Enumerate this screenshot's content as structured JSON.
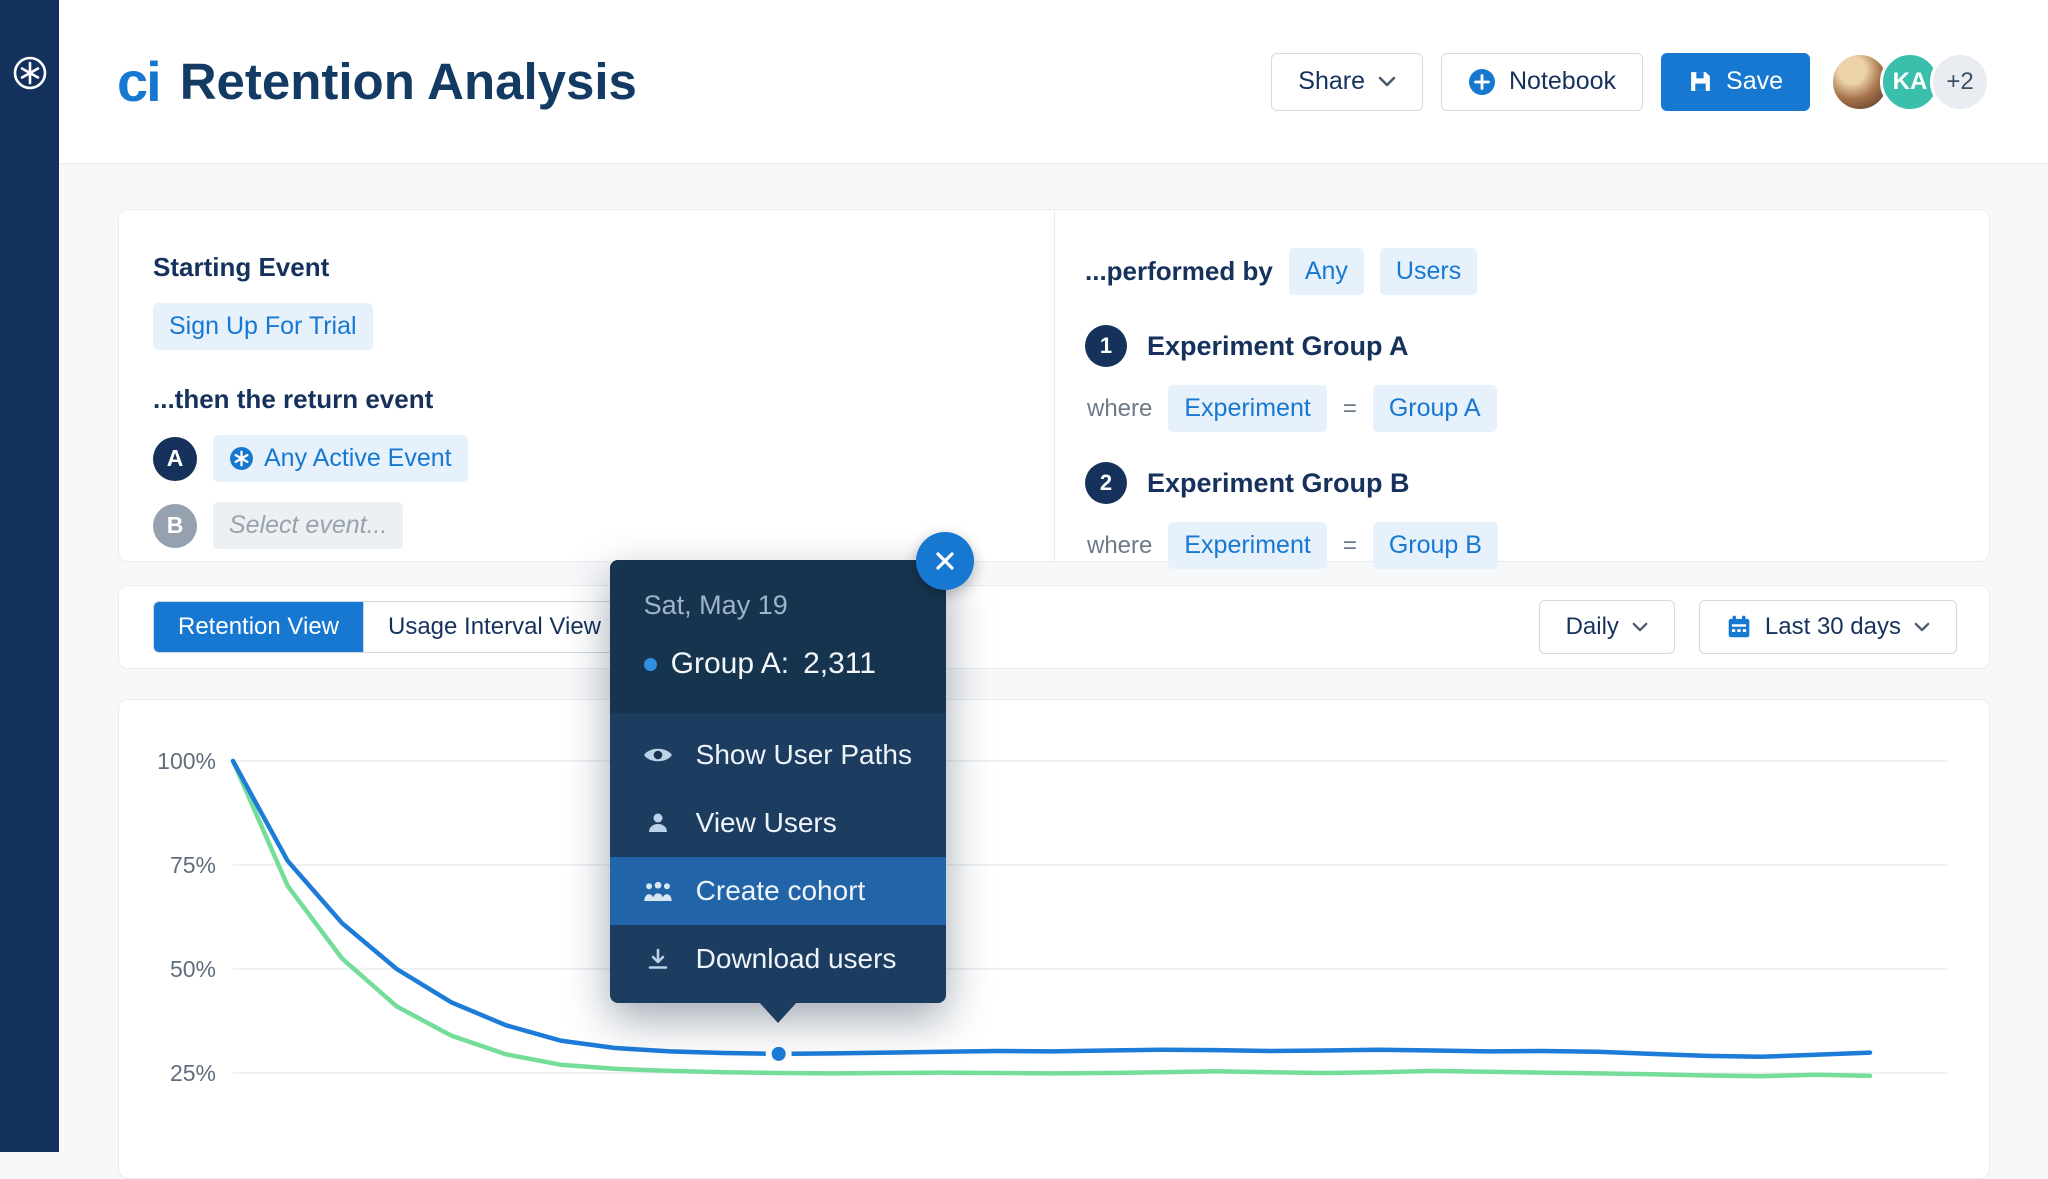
{
  "app": {
    "logo_text": "ci",
    "title": "Retention Analysis",
    "sidebar_logo": "A"
  },
  "header": {
    "share_label": "Share",
    "notebook_label": "Notebook",
    "save_label": "Save",
    "avatar_initials": "KA",
    "overflow_badge": "+2"
  },
  "query": {
    "starting_event": {
      "heading": "Starting Event",
      "event_chip": "Sign Up For Trial",
      "return_heading": "...then the return event",
      "rows": [
        {
          "badge": "A",
          "label": "Any Active Event",
          "icon": "any-event-icon"
        },
        {
          "badge": "B",
          "label": "Select event...",
          "icon": null
        }
      ]
    },
    "performed_by": {
      "heading": "...performed by",
      "chips": [
        "Any",
        "Users"
      ],
      "groups": [
        {
          "num": "1",
          "name": "Experiment Group A",
          "where_label": "where",
          "property": "Experiment",
          "operator": "=",
          "value": "Group A"
        },
        {
          "num": "2",
          "name": "Experiment Group B",
          "where_label": "where",
          "property": "Experiment",
          "operator": "=",
          "value": "Group B"
        }
      ]
    }
  },
  "view_controls": {
    "tabs": [
      {
        "label": "Retention View",
        "active": true
      },
      {
        "label": "Usage Interval View",
        "active": false
      }
    ],
    "granularity": "Daily",
    "date_range": "Last 30 days"
  },
  "tooltip": {
    "date": "Sat, May 19",
    "series_label": "Group A:",
    "series_value": "2,311",
    "menu": [
      {
        "icon": "eye-icon",
        "label": "Show User Paths",
        "highlighted": false
      },
      {
        "icon": "user-icon",
        "label": "View Users",
        "highlighted": false
      },
      {
        "icon": "users-icon",
        "label": "Create cohort",
        "highlighted": true
      },
      {
        "icon": "download-icon",
        "label": "Download users",
        "highlighted": false
      }
    ]
  },
  "chart_data": {
    "type": "line",
    "title": "",
    "xlabel": "",
    "ylabel": "",
    "grid": true,
    "legend_position": "none",
    "yticks": [
      100,
      75,
      50,
      25
    ],
    "ytick_labels": [
      "100%",
      "75%",
      "50%",
      "25%"
    ],
    "ylim": [
      20,
      100
    ],
    "x": [
      0,
      1,
      2,
      3,
      4,
      5,
      6,
      7,
      8,
      9,
      10,
      11,
      12,
      13,
      14,
      15,
      16,
      17,
      18,
      19,
      20,
      21,
      22,
      23,
      24,
      25,
      26,
      27,
      28,
      29,
      30
    ],
    "series": [
      {
        "name": "Group A",
        "color": "#1c7cd8",
        "values": [
          100,
          76,
          61,
          50,
          42,
          36.5,
          32.8,
          31,
          30.2,
          29.8,
          29.6,
          29.7,
          29.9,
          30.1,
          30.3,
          30.2,
          30.4,
          30.6,
          30.5,
          30.3,
          30.4,
          30.6,
          30.4,
          30.2,
          30.3,
          30.1,
          29.6,
          29.1,
          28.9,
          29.4,
          29.9
        ]
      },
      {
        "name": "Group B",
        "color": "#74dd9a",
        "values": [
          100,
          70,
          52.5,
          41,
          34,
          29.5,
          27,
          26,
          25.5,
          25.2,
          25,
          24.9,
          25,
          25.1,
          25,
          24.9,
          25,
          25.2,
          25.4,
          25.2,
          25,
          25.2,
          25.5,
          25.3,
          25.1,
          24.9,
          24.7,
          24.4,
          24.2,
          24.6,
          24.3
        ]
      }
    ],
    "highlight_point": {
      "series_index": 0,
      "x_index": 10,
      "date": "Sat, May 19",
      "value": 2311,
      "value_label": "2,311"
    }
  },
  "colors": {
    "accent": "#1778d2",
    "navy": "#16325c",
    "sidebar": "#14315d",
    "chip_bg": "#e7f1fb",
    "blue_line": "#1c7cd8",
    "green_line": "#74dd9a",
    "tooltip_bg": "#1d3d60",
    "tooltip_header_bg": "#17344f",
    "highlight_row": "#2264a8",
    "grid_line": "#e9edf1"
  }
}
